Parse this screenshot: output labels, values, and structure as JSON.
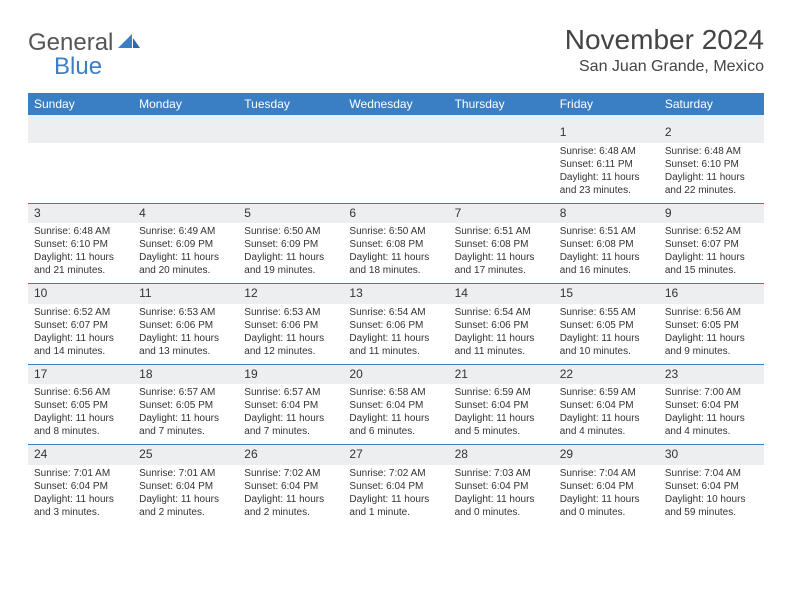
{
  "logo": {
    "word1": "General",
    "word2": "Blue"
  },
  "title": "November 2024",
  "location": "San Juan Grande, Mexico",
  "colors": {
    "header_bg": "#3a7fc4",
    "header_text": "#ffffff",
    "stripe_bg": "#eceef0",
    "body_text": "#333333",
    "rule": "#3a7fc4",
    "page_bg": "#ffffff"
  },
  "typography": {
    "title_fontsize": 28,
    "location_fontsize": 16,
    "dow_fontsize": 12,
    "daynum_fontsize": 12,
    "body_fontsize": 10,
    "logo_fontsize": 24
  },
  "daysOfWeek": [
    "Sunday",
    "Monday",
    "Tuesday",
    "Wednesday",
    "Thursday",
    "Friday",
    "Saturday"
  ],
  "weeks": [
    [
      null,
      null,
      null,
      null,
      null,
      {
        "n": "1",
        "sr": "Sunrise: 6:48 AM",
        "ss": "Sunset: 6:11 PM",
        "d1": "Daylight: 11 hours",
        "d2": "and 23 minutes."
      },
      {
        "n": "2",
        "sr": "Sunrise: 6:48 AM",
        "ss": "Sunset: 6:10 PM",
        "d1": "Daylight: 11 hours",
        "d2": "and 22 minutes."
      }
    ],
    [
      {
        "n": "3",
        "sr": "Sunrise: 6:48 AM",
        "ss": "Sunset: 6:10 PM",
        "d1": "Daylight: 11 hours",
        "d2": "and 21 minutes."
      },
      {
        "n": "4",
        "sr": "Sunrise: 6:49 AM",
        "ss": "Sunset: 6:09 PM",
        "d1": "Daylight: 11 hours",
        "d2": "and 20 minutes."
      },
      {
        "n": "5",
        "sr": "Sunrise: 6:50 AM",
        "ss": "Sunset: 6:09 PM",
        "d1": "Daylight: 11 hours",
        "d2": "and 19 minutes."
      },
      {
        "n": "6",
        "sr": "Sunrise: 6:50 AM",
        "ss": "Sunset: 6:08 PM",
        "d1": "Daylight: 11 hours",
        "d2": "and 18 minutes."
      },
      {
        "n": "7",
        "sr": "Sunrise: 6:51 AM",
        "ss": "Sunset: 6:08 PM",
        "d1": "Daylight: 11 hours",
        "d2": "and 17 minutes."
      },
      {
        "n": "8",
        "sr": "Sunrise: 6:51 AM",
        "ss": "Sunset: 6:08 PM",
        "d1": "Daylight: 11 hours",
        "d2": "and 16 minutes."
      },
      {
        "n": "9",
        "sr": "Sunrise: 6:52 AM",
        "ss": "Sunset: 6:07 PM",
        "d1": "Daylight: 11 hours",
        "d2": "and 15 minutes."
      }
    ],
    [
      {
        "n": "10",
        "sr": "Sunrise: 6:52 AM",
        "ss": "Sunset: 6:07 PM",
        "d1": "Daylight: 11 hours",
        "d2": "and 14 minutes."
      },
      {
        "n": "11",
        "sr": "Sunrise: 6:53 AM",
        "ss": "Sunset: 6:06 PM",
        "d1": "Daylight: 11 hours",
        "d2": "and 13 minutes."
      },
      {
        "n": "12",
        "sr": "Sunrise: 6:53 AM",
        "ss": "Sunset: 6:06 PM",
        "d1": "Daylight: 11 hours",
        "d2": "and 12 minutes."
      },
      {
        "n": "13",
        "sr": "Sunrise: 6:54 AM",
        "ss": "Sunset: 6:06 PM",
        "d1": "Daylight: 11 hours",
        "d2": "and 11 minutes."
      },
      {
        "n": "14",
        "sr": "Sunrise: 6:54 AM",
        "ss": "Sunset: 6:06 PM",
        "d1": "Daylight: 11 hours",
        "d2": "and 11 minutes."
      },
      {
        "n": "15",
        "sr": "Sunrise: 6:55 AM",
        "ss": "Sunset: 6:05 PM",
        "d1": "Daylight: 11 hours",
        "d2": "and 10 minutes."
      },
      {
        "n": "16",
        "sr": "Sunrise: 6:56 AM",
        "ss": "Sunset: 6:05 PM",
        "d1": "Daylight: 11 hours",
        "d2": "and 9 minutes."
      }
    ],
    [
      {
        "n": "17",
        "sr": "Sunrise: 6:56 AM",
        "ss": "Sunset: 6:05 PM",
        "d1": "Daylight: 11 hours",
        "d2": "and 8 minutes."
      },
      {
        "n": "18",
        "sr": "Sunrise: 6:57 AM",
        "ss": "Sunset: 6:05 PM",
        "d1": "Daylight: 11 hours",
        "d2": "and 7 minutes."
      },
      {
        "n": "19",
        "sr": "Sunrise: 6:57 AM",
        "ss": "Sunset: 6:04 PM",
        "d1": "Daylight: 11 hours",
        "d2": "and 7 minutes."
      },
      {
        "n": "20",
        "sr": "Sunrise: 6:58 AM",
        "ss": "Sunset: 6:04 PM",
        "d1": "Daylight: 11 hours",
        "d2": "and 6 minutes."
      },
      {
        "n": "21",
        "sr": "Sunrise: 6:59 AM",
        "ss": "Sunset: 6:04 PM",
        "d1": "Daylight: 11 hours",
        "d2": "and 5 minutes."
      },
      {
        "n": "22",
        "sr": "Sunrise: 6:59 AM",
        "ss": "Sunset: 6:04 PM",
        "d1": "Daylight: 11 hours",
        "d2": "and 4 minutes."
      },
      {
        "n": "23",
        "sr": "Sunrise: 7:00 AM",
        "ss": "Sunset: 6:04 PM",
        "d1": "Daylight: 11 hours",
        "d2": "and 4 minutes."
      }
    ],
    [
      {
        "n": "24",
        "sr": "Sunrise: 7:01 AM",
        "ss": "Sunset: 6:04 PM",
        "d1": "Daylight: 11 hours",
        "d2": "and 3 minutes."
      },
      {
        "n": "25",
        "sr": "Sunrise: 7:01 AM",
        "ss": "Sunset: 6:04 PM",
        "d1": "Daylight: 11 hours",
        "d2": "and 2 minutes."
      },
      {
        "n": "26",
        "sr": "Sunrise: 7:02 AM",
        "ss": "Sunset: 6:04 PM",
        "d1": "Daylight: 11 hours",
        "d2": "and 2 minutes."
      },
      {
        "n": "27",
        "sr": "Sunrise: 7:02 AM",
        "ss": "Sunset: 6:04 PM",
        "d1": "Daylight: 11 hours",
        "d2": "and 1 minute."
      },
      {
        "n": "28",
        "sr": "Sunrise: 7:03 AM",
        "ss": "Sunset: 6:04 PM",
        "d1": "Daylight: 11 hours",
        "d2": "and 0 minutes."
      },
      {
        "n": "29",
        "sr": "Sunrise: 7:04 AM",
        "ss": "Sunset: 6:04 PM",
        "d1": "Daylight: 11 hours",
        "d2": "and 0 minutes."
      },
      {
        "n": "30",
        "sr": "Sunrise: 7:04 AM",
        "ss": "Sunset: 6:04 PM",
        "d1": "Daylight: 10 hours",
        "d2": "and 59 minutes."
      }
    ]
  ]
}
